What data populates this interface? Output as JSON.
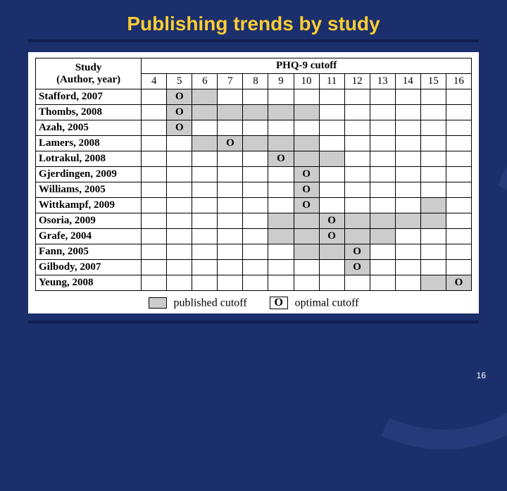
{
  "slide": {
    "title": "Publishing trends by study",
    "page_number": "16",
    "background_color": "#1a2f6b",
    "accent_color": "#ffcc33",
    "rule_color": "#0f1f4f"
  },
  "table": {
    "study_header_line1": "Study",
    "study_header_line2": "(Author, year)",
    "cutoff_header": "PHQ-9 cutoff",
    "cutoff_values": [
      "4",
      "5",
      "6",
      "7",
      "8",
      "9",
      "10",
      "11",
      "12",
      "13",
      "14",
      "15",
      "16"
    ],
    "optimal_marker": "O",
    "published_fill": "#cccccc",
    "rows": [
      {
        "study": "Stafford, 2007",
        "published": [
          5,
          6
        ],
        "optimal": 5
      },
      {
        "study": "Thombs, 2008",
        "published": [
          5,
          6,
          7,
          8,
          9,
          10
        ],
        "optimal": 5
      },
      {
        "study": "Azah, 2005",
        "published": [
          5
        ],
        "optimal": 5
      },
      {
        "study": "Lamers, 2008",
        "published": [
          6,
          7,
          8,
          9,
          10
        ],
        "optimal": 7
      },
      {
        "study": "Lotrakul, 2008",
        "published": [
          9,
          10,
          11
        ],
        "optimal": 9
      },
      {
        "study": "Gjerdingen, 2009",
        "published": [
          10
        ],
        "optimal": 10
      },
      {
        "study": "Williams, 2005",
        "published": [
          10
        ],
        "optimal": 10
      },
      {
        "study": "Wittkampf, 2009",
        "published": [
          10,
          15
        ],
        "optimal": 10
      },
      {
        "study": "Osoria, 2009",
        "published": [
          9,
          10,
          11,
          12,
          13,
          14,
          15
        ],
        "optimal": 11
      },
      {
        "study": "Grafe, 2004",
        "published": [
          9,
          10,
          11,
          12,
          13
        ],
        "optimal": 11
      },
      {
        "study": "Fann, 2005",
        "published": [
          10,
          11,
          12
        ],
        "optimal": 12
      },
      {
        "study": "Gilbody, 2007",
        "published": [
          12
        ],
        "optimal": 12
      },
      {
        "study": "Yeung, 2008",
        "published": [
          15,
          16
        ],
        "optimal": 16
      }
    ]
  },
  "legend": {
    "published_label": "published cutoff",
    "optimal_label": "optimal cutoff",
    "optimal_symbol": "O"
  }
}
